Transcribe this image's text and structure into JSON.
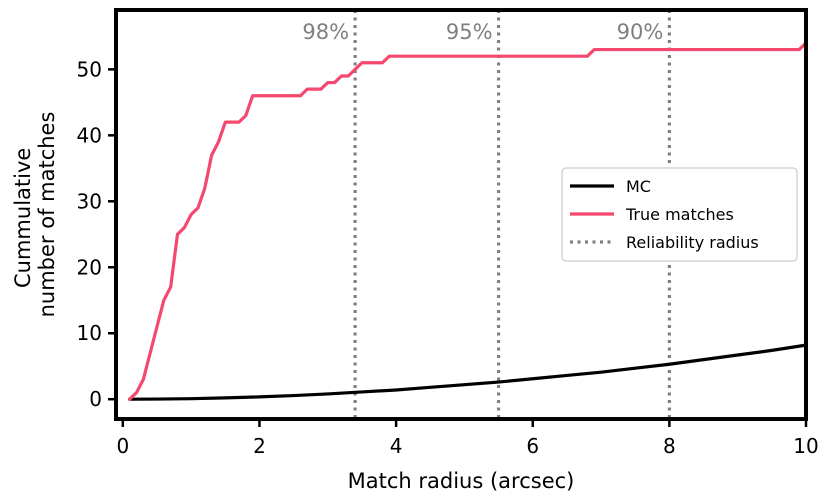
{
  "chart_data": {
    "type": "line",
    "title": "",
    "xlabel": "Match radius (arcsec)",
    "ylabel_lines": [
      "Cummulative",
      "number of matches"
    ],
    "xlim": [
      -0.1,
      10
    ],
    "ylim": [
      -3,
      59
    ],
    "xticks": [
      0,
      2,
      4,
      6,
      8,
      10
    ],
    "yticks": [
      0,
      10,
      20,
      30,
      40,
      50
    ],
    "grid": false,
    "legend_position": "center-right",
    "series": [
      {
        "name": "MC",
        "color": "#000000",
        "style": "solid",
        "x": [
          0.1,
          0.5,
          1.0,
          1.5,
          2.0,
          2.5,
          3.0,
          3.5,
          4.0,
          4.5,
          5.0,
          5.5,
          6.0,
          6.5,
          7.0,
          7.5,
          8.0,
          8.5,
          9.0,
          9.5,
          10.0
        ],
        "y": [
          0.0,
          0.02,
          0.08,
          0.2,
          0.35,
          0.55,
          0.8,
          1.1,
          1.4,
          1.8,
          2.2,
          2.6,
          3.1,
          3.6,
          4.1,
          4.7,
          5.3,
          6.0,
          6.7,
          7.4,
          8.2
        ]
      },
      {
        "name": "True matches",
        "color": "#f4486d",
        "style": "solid",
        "x": [
          0.1,
          0.2,
          0.3,
          0.4,
          0.5,
          0.6,
          0.7,
          0.8,
          0.9,
          1.0,
          1.1,
          1.2,
          1.3,
          1.4,
          1.5,
          1.6,
          1.7,
          1.8,
          1.9,
          2.0,
          2.5,
          2.6,
          2.7,
          2.8,
          2.9,
          3.0,
          3.1,
          3.2,
          3.3,
          3.4,
          3.5,
          3.6,
          3.7,
          3.8,
          3.9,
          4.0,
          4.5,
          5.0,
          5.5,
          6.0,
          6.5,
          6.8,
          6.9,
          7.0,
          7.5,
          8.0,
          8.5,
          9.0,
          9.5,
          9.9,
          10.0
        ],
        "y": [
          0,
          1,
          3,
          7,
          11,
          15,
          17,
          25,
          26,
          28,
          29,
          32,
          37,
          39,
          42,
          42,
          42,
          43,
          46,
          46,
          46,
          46,
          47,
          47,
          47,
          48,
          48,
          49,
          49,
          50,
          51,
          51,
          51,
          51,
          52,
          52,
          52,
          52,
          52,
          52,
          52,
          52,
          53,
          53,
          53,
          53,
          53,
          53,
          53,
          53,
          54
        ]
      }
    ],
    "reference_lines": {
      "name": "Reliability radius",
      "color": "#808080",
      "style": "dotted",
      "lines": [
        {
          "x": 3.4,
          "label": "98%"
        },
        {
          "x": 5.5,
          "label": "95%"
        },
        {
          "x": 8.0,
          "label": "90%"
        }
      ]
    }
  }
}
